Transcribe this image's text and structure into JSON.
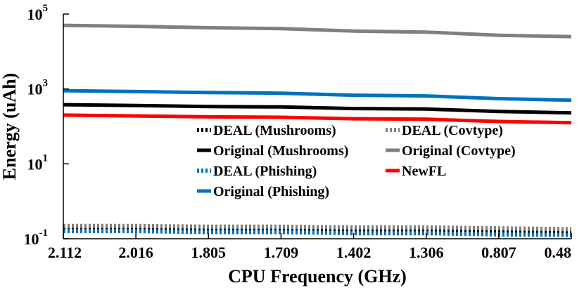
{
  "chart_data": {
    "type": "line",
    "title": "",
    "xlabel": "CPU Frequency (GHz)",
    "ylabel": "Energy (uAh)",
    "yscale": "log",
    "ylim": [
      0.1,
      100000
    ],
    "yticks": [
      {
        "base": "10",
        "exp": "-1"
      },
      {
        "base": "10",
        "exp": "1"
      },
      {
        "base": "10",
        "exp": "3"
      },
      {
        "base": "10",
        "exp": "5"
      }
    ],
    "ytick_values": [
      0.1,
      10,
      1000,
      100000
    ],
    "categories": [
      "2.112",
      "2.016",
      "1.805",
      "1.709",
      "1.402",
      "1.306",
      "0.807",
      "0.48"
    ],
    "grid": false,
    "legend_position": "center-right",
    "series": [
      {
        "name": "DEAL (Mushrooms)",
        "color": "#000000",
        "style": "dotted",
        "values": [
          0.18,
          0.18,
          0.17,
          0.17,
          0.16,
          0.16,
          0.15,
          0.14
        ]
      },
      {
        "name": "DEAL (Covtype)",
        "color": "#808080",
        "style": "dotted",
        "values": [
          0.22,
          0.22,
          0.21,
          0.21,
          0.2,
          0.2,
          0.19,
          0.18
        ]
      },
      {
        "name": "Original (Mushrooms)",
        "color": "#000000",
        "style": "solid",
        "values": [
          380,
          360,
          340,
          330,
          300,
          290,
          250,
          230
        ]
      },
      {
        "name": "Original (Covtype)",
        "color": "#808080",
        "style": "solid",
        "values": [
          50000,
          47000,
          43000,
          41000,
          35000,
          33000,
          27000,
          25000
        ]
      },
      {
        "name": "DEAL (Phishing)",
        "color": "#0072BD",
        "style": "dotted",
        "values": [
          0.16,
          0.16,
          0.15,
          0.15,
          0.14,
          0.14,
          0.13,
          0.125
        ]
      },
      {
        "name": "NewFL",
        "color": "#FF0000",
        "style": "solid",
        "values": [
          200,
          190,
          180,
          175,
          160,
          155,
          135,
          125
        ]
      },
      {
        "name": "Original (Phishing)",
        "color": "#0072BD",
        "style": "solid",
        "values": [
          900,
          850,
          800,
          770,
          680,
          650,
          550,
          500
        ]
      }
    ]
  }
}
